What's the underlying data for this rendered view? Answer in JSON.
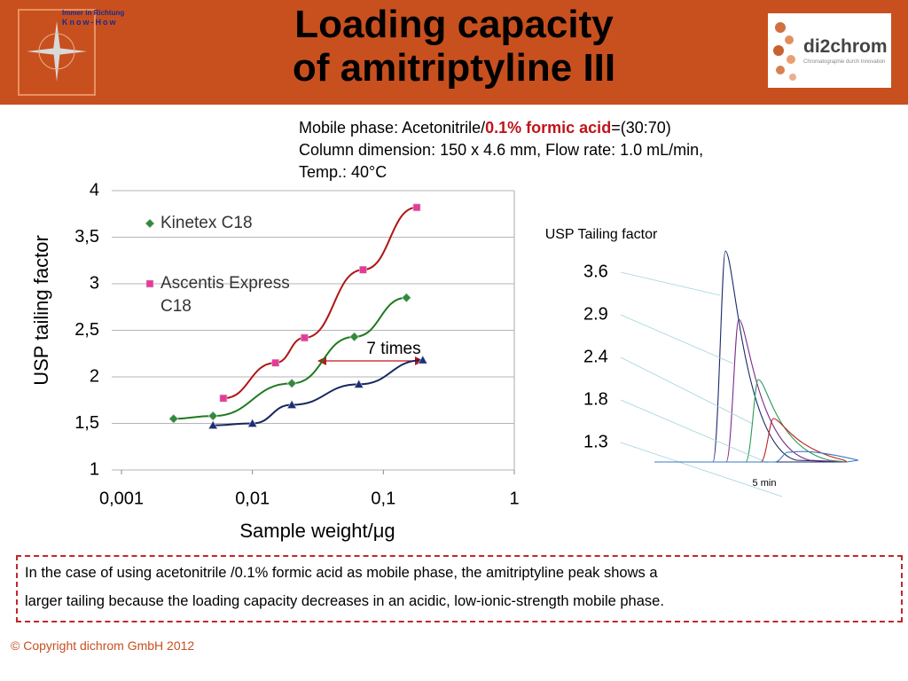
{
  "header": {
    "title_lines": [
      "Loading capacity",
      "of amitriptyline III"
    ],
    "left_logo": [
      "Immer in Richtung",
      "Know-How"
    ],
    "right_logo": [
      "di2chrom",
      "Chromatographie durch Innovation"
    ]
  },
  "conditions": {
    "line1": [
      "Mobile phase: Acetonitrile/",
      "0.1% formic acid",
      "=(30:70)"
    ],
    "line2": "Column dimension: 150 x 4.6 mm, Flow rate: 1.0 mL/min,",
    "line3": "Temp.: 40°C"
  },
  "chart_data": {
    "type": "scatter",
    "xlabel": "Sample weight/μg",
    "ylabel": "USP tailing factor",
    "x_log": true,
    "grid": true,
    "xlim": [
      0.001,
      1
    ],
    "xticks": [
      {
        "value": 0.001,
        "label": "0,001"
      },
      {
        "value": 0.01,
        "label": "0,01"
      },
      {
        "value": 0.1,
        "label": "0,1"
      },
      1
    ],
    "ylim": [
      1,
      4
    ],
    "yticks": [
      1,
      {
        "value": 1.5,
        "label": "1,5"
      },
      2,
      {
        "value": 2.5,
        "label": "2,5"
      },
      3,
      {
        "value": 3.5,
        "label": "3,5"
      },
      4
    ],
    "annotation": "7  times",
    "series": [
      {
        "name": "Kinetex C18",
        "color": "#2e8b3a",
        "line_color": "#1f7a1f",
        "marker": "diamond",
        "x": [
          0.0025,
          0.005,
          0.02,
          0.06,
          0.15
        ],
        "values": [
          1.55,
          1.58,
          1.93,
          2.43,
          2.85
        ]
      },
      {
        "name": "Ascentis Express C18",
        "color": "#e8399a",
        "line_color": "#b01515",
        "marker": "square",
        "x": [
          0.006,
          0.015,
          0.025,
          0.07,
          0.18
        ],
        "values": [
          1.77,
          2.15,
          2.42,
          3.15,
          3.82
        ]
      },
      {
        "color": "#1a2f7a",
        "line_color": "#15265e",
        "marker": "triangle",
        "x": [
          0.005,
          0.01,
          0.02,
          0.065,
          0.2
        ],
        "values": [
          1.48,
          1.5,
          1.7,
          1.92,
          2.18
        ]
      }
    ]
  },
  "chromatogram": {
    "title": "USP Tailing factor",
    "labels": [
      3.6,
      2.9,
      2.4,
      1.8,
      1.3
    ],
    "colors": [
      "#1a2a6a",
      "#7a2a8a",
      "#2a9a5a",
      "#c02020",
      "#3a7ac0"
    ],
    "time_label": "5 min"
  },
  "note": [
    "In the case of using acetonitrile /0.1% formic acid as mobile phase, the amitriptyline peak shows a",
    "larger tailing because the loading capacity decreases in an acidic, low-ionic-strength mobile phase."
  ],
  "footer": "© Copyright dichrom GmbH 2012"
}
